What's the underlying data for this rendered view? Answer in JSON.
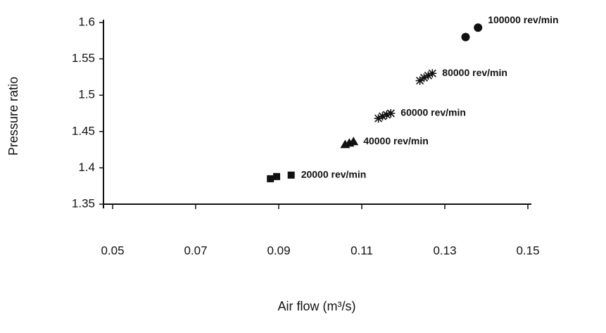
{
  "chart_data": {
    "type": "scatter",
    "xlabel": "Air flow (m³/s)",
    "ylabel": "Pressure ratio",
    "xlim": [
      0.05,
      0.15
    ],
    "xticks": [
      0.05,
      0.07,
      0.09,
      0.11,
      0.13,
      0.15
    ],
    "ylim": [
      1.35,
      1.6
    ],
    "yticks": [
      1.35,
      1.4,
      1.45,
      1.5,
      1.55,
      1.6
    ],
    "grid": false,
    "series": [
      {
        "name": "20000 rev/min",
        "marker": "square",
        "color": "#111111",
        "x": [
          0.088,
          0.0895,
          0.093
        ],
        "y": [
          1.385,
          1.388,
          1.39
        ]
      },
      {
        "name": "40000 rev/min",
        "marker": "triangle",
        "color": "#111111",
        "x": [
          0.106,
          0.107,
          0.108
        ],
        "y": [
          1.432,
          1.434,
          1.436
        ]
      },
      {
        "name": "60000 rev/min",
        "marker": "star",
        "color": "#111111",
        "x": [
          0.114,
          0.115,
          0.116,
          0.117
        ],
        "y": [
          1.468,
          1.471,
          1.473,
          1.475
        ]
      },
      {
        "name": "80000 rev/min",
        "marker": "star",
        "color": "#111111",
        "x": [
          0.124,
          0.125,
          0.126,
          0.127
        ],
        "y": [
          1.52,
          1.524,
          1.527,
          1.53
        ]
      },
      {
        "name": "100000 rev/min",
        "marker": "circle",
        "color": "#111111",
        "x": [
          0.135,
          0.138
        ],
        "y": [
          1.58,
          1.593
        ]
      }
    ]
  }
}
